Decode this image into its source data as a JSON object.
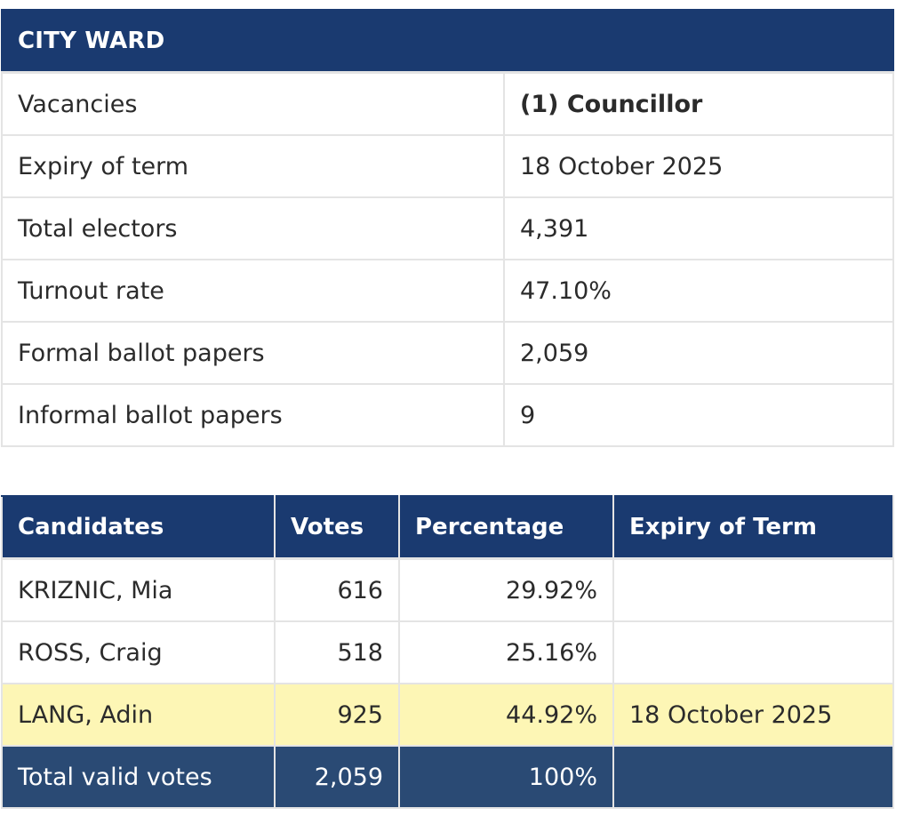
{
  "summary": {
    "title": "CITY WARD",
    "rows": [
      {
        "label": "Vacancies",
        "value": "(1) Councillor"
      },
      {
        "label": "Expiry of term",
        "value": "18 October 2025"
      },
      {
        "label": "Total electors",
        "value": "4,391"
      },
      {
        "label": "Turnout rate",
        "value": "47.10%"
      },
      {
        "label": "Formal ballot papers",
        "value": "2,059"
      },
      {
        "label": "Informal ballot papers",
        "value": "9"
      }
    ]
  },
  "results": {
    "headers": {
      "candidates": "Candidates",
      "votes": "Votes",
      "percentage": "Percentage",
      "expiry": "Expiry of Term"
    },
    "rows": [
      {
        "name": "KRIZNIC, Mia",
        "votes": "616",
        "percentage": "29.92%",
        "expiry": ""
      },
      {
        "name": "ROSS, Craig",
        "votes": "518",
        "percentage": "25.16%",
        "expiry": ""
      },
      {
        "name": "LANG, Adin",
        "votes": "925",
        "percentage": "44.92%",
        "expiry": "18 October 2025"
      }
    ],
    "total": {
      "label": "Total valid votes",
      "votes": "2,059",
      "percentage": "100%",
      "expiry": ""
    }
  },
  "colors": {
    "header_bg": "#1a3a70",
    "total_bg": "#2a4a74",
    "elected_highlight": "#fdf6b5"
  }
}
